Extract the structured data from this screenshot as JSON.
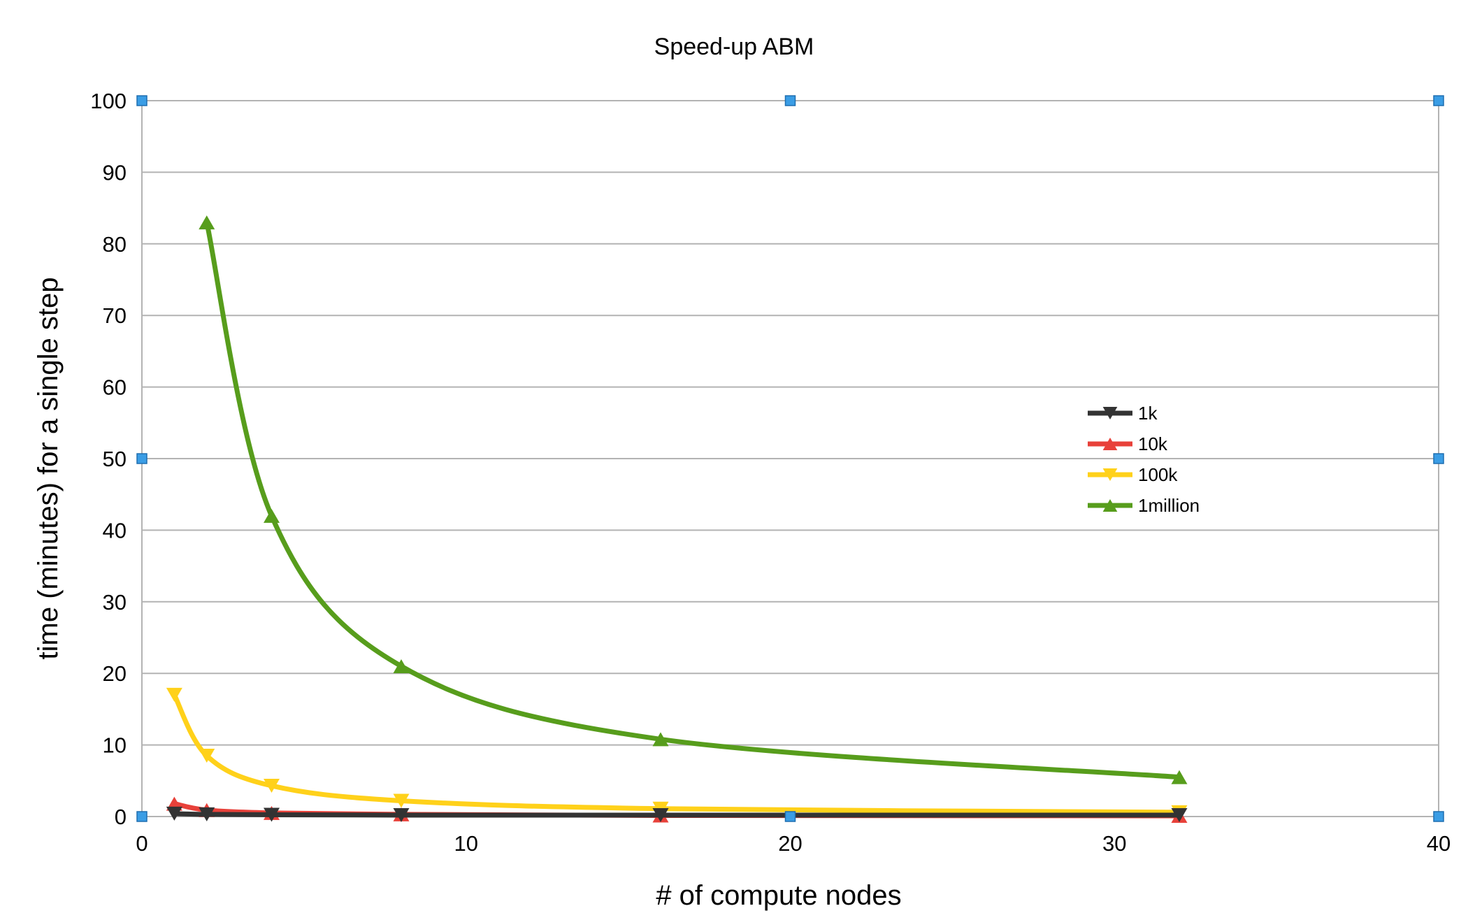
{
  "chart_data": {
    "type": "line",
    "title": "Speed-up ABM",
    "xlabel": "# of compute nodes",
    "ylabel": "time (minutes) for a single step",
    "xlim": [
      0,
      40
    ],
    "ylim": [
      0,
      100
    ],
    "xticks": [
      0,
      10,
      20,
      30,
      40
    ],
    "yticks": [
      0,
      10,
      20,
      30,
      40,
      50,
      60,
      70,
      80,
      90,
      100
    ],
    "grid": true,
    "legend_position": "right",
    "x": [
      1,
      2,
      4,
      8,
      16,
      32
    ],
    "series": [
      {
        "name": "1k",
        "color": "#333333",
        "marker": "triangle-down",
        "values": [
          0.4,
          0.3,
          0.25,
          0.2,
          0.2,
          0.2
        ]
      },
      {
        "name": "10k",
        "color": "#e8413a",
        "marker": "triangle-up",
        "values": [
          1.8,
          0.9,
          0.5,
          0.3,
          0.15,
          0.1
        ]
      },
      {
        "name": "100k",
        "color": "#ffd11a",
        "marker": "triangle-down",
        "values": [
          17,
          8.5,
          4.3,
          2.2,
          1.1,
          0.6
        ]
      },
      {
        "name": "1million",
        "color": "#579d1c",
        "marker": "triangle-up",
        "values": [
          null,
          83,
          42,
          21,
          10.8,
          5.5
        ]
      }
    ],
    "selection_handles_color": "#3a9de5"
  }
}
